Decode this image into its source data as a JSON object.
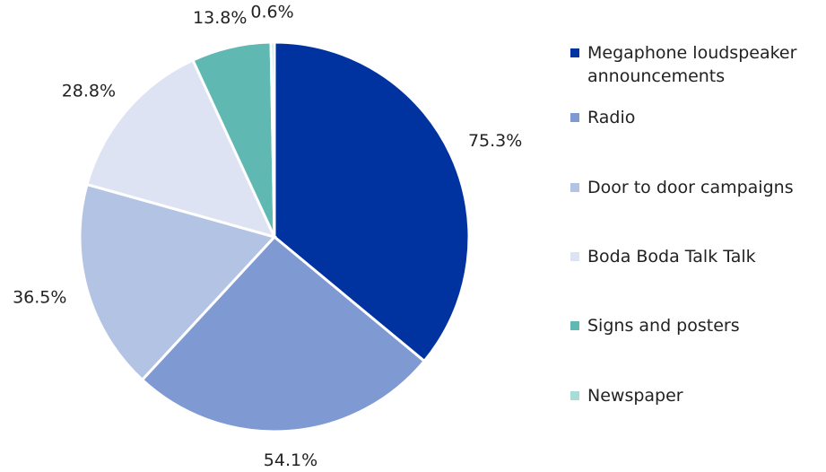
{
  "chart_data": {
    "type": "pie",
    "categories": [
      "Megaphone loudspeaker announcements",
      "Radio",
      "Door to door campaigns",
      "Boda Boda Talk Talk",
      "Signs and posters",
      "Newspaper"
    ],
    "values": [
      75.3,
      54.1,
      36.5,
      28.8,
      13.8,
      0.6
    ],
    "value_labels": [
      "75.3%",
      "54.1%",
      "36.5%",
      "28.8%",
      "13.8%",
      "0.6%"
    ],
    "colors": [
      "#0033a0",
      "#7f9ad2",
      "#b3c3e3",
      "#dde3f3",
      "#5fb8b1",
      "#a8ddd6"
    ],
    "legend": "right"
  }
}
